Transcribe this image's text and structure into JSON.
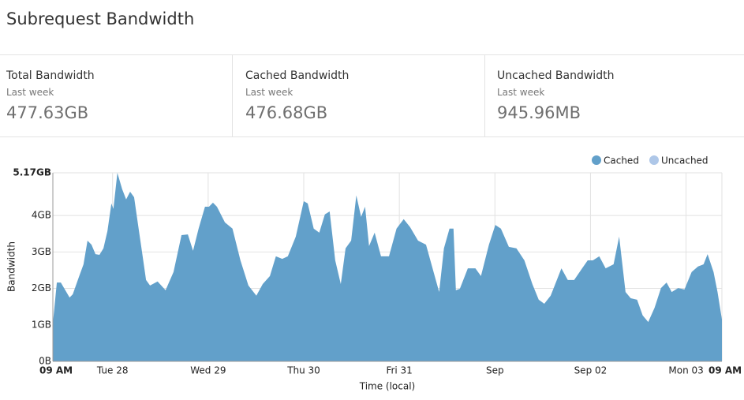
{
  "header": {
    "title": "Subrequest Bandwidth"
  },
  "stats": [
    {
      "title": "Total Bandwidth",
      "subtitle": "Last week",
      "value": "477.63GB"
    },
    {
      "title": "Cached Bandwidth",
      "subtitle": "Last week",
      "value": "476.68GB"
    },
    {
      "title": "Uncached Bandwidth",
      "subtitle": "Last week",
      "value": "945.96MB"
    }
  ],
  "chart_data": {
    "type": "area",
    "x_label": "Time (local)",
    "y_label": "Bandwidth",
    "grid": true,
    "legend": "top-right",
    "xlim": [
      0,
      168
    ],
    "xticks": [
      {
        "value": 0,
        "label": "09 AM"
      },
      {
        "value": 15,
        "label": "Tue 28"
      },
      {
        "value": 39,
        "label": "Wed 29"
      },
      {
        "value": 63,
        "label": "Thu 30"
      },
      {
        "value": 87,
        "label": "Fri 31"
      },
      {
        "value": 111,
        "label": "Sep"
      },
      {
        "value": 135,
        "label": "Sep 02"
      },
      {
        "value": 159,
        "label": "Mon 03"
      },
      {
        "value": 168,
        "label": "09 AM"
      }
    ],
    "ylim": [
      0,
      5.17
    ],
    "yticks": [
      {
        "value": 0,
        "label": "0B"
      },
      {
        "value": 1,
        "label": "1GB"
      },
      {
        "value": 2,
        "label": "2GB"
      },
      {
        "value": 3,
        "label": "3GB"
      },
      {
        "value": 4,
        "label": "4GB"
      },
      {
        "value": 5.17,
        "label": "5.17GB"
      }
    ],
    "series": [
      {
        "name": "Cached",
        "color": "#62a0ca",
        "x": [
          0,
          1,
          2,
          4.2,
          5,
          6.5,
          7.7,
          8.7,
          9.7,
          10.7,
          11.7,
          12.7,
          13.7,
          14.7,
          15.2,
          16.2,
          17.4,
          18.4,
          19.4,
          20.4,
          21.4,
          22.4,
          23.4,
          24.4,
          26.3,
          28.3,
          30.3,
          32.3,
          33.9,
          35.2,
          36.6,
          38.2,
          39.2,
          40.2,
          41.2,
          43.2,
          45.1,
          47.1,
          49.1,
          51.1,
          52.7,
          54.5,
          56,
          57.6,
          59,
          61,
          63,
          64,
          65.5,
          66.9,
          68.3,
          69.5,
          70.9,
          72.3,
          73.5,
          74.9,
          76.2,
          77.4,
          78.4,
          79.4,
          80.8,
          82.4,
          84.4,
          86.3,
          88.1,
          89.7,
          91.7,
          93.7,
          95.6,
          97,
          98.2,
          99.6,
          100.6,
          101.2,
          102.2,
          104.2,
          106.1,
          107.5,
          109.5,
          111.1,
          112.5,
          114.5,
          116.4,
          118.4,
          120.4,
          122,
          123.4,
          125,
          126.3,
          127.7,
          129.3,
          130.9,
          132.9,
          134.3,
          135.6,
          137.2,
          138.8,
          140.8,
          142.2,
          143.8,
          145.1,
          146.7,
          148.1,
          149.5,
          151.1,
          152.7,
          154.1,
          155.4,
          157,
          158.6,
          160.4,
          162,
          163.4,
          164.4,
          165.9,
          166.9,
          168
        ],
        "values": [
          1.04,
          2.16,
          2.16,
          1.75,
          1.84,
          2.3,
          2.66,
          3.31,
          3.2,
          2.94,
          2.92,
          3.1,
          3.57,
          4.33,
          4.18,
          5.17,
          4.72,
          4.44,
          4.65,
          4.5,
          3.74,
          2.99,
          2.23,
          2.08,
          2.19,
          1.95,
          2.45,
          3.46,
          3.48,
          3.03,
          3.64,
          4.24,
          4.24,
          4.35,
          4.24,
          3.81,
          3.64,
          2.77,
          2.08,
          1.8,
          2.12,
          2.34,
          2.88,
          2.81,
          2.88,
          3.42,
          4.39,
          4.33,
          3.64,
          3.53,
          4.03,
          4.11,
          2.77,
          2.12,
          3.1,
          3.31,
          4.55,
          3.96,
          4.24,
          3.16,
          3.53,
          2.88,
          2.88,
          3.64,
          3.9,
          3.68,
          3.31,
          3.2,
          2.45,
          1.9,
          3.1,
          3.64,
          3.64,
          1.95,
          1.99,
          2.55,
          2.55,
          2.34,
          3.2,
          3.74,
          3.64,
          3.14,
          3.1,
          2.77,
          2.12,
          1.69,
          1.58,
          1.8,
          2.16,
          2.55,
          2.23,
          2.23,
          2.55,
          2.77,
          2.77,
          2.88,
          2.55,
          2.66,
          3.42,
          1.9,
          1.73,
          1.69,
          1.26,
          1.08,
          1.47,
          2.01,
          2.16,
          1.9,
          2.01,
          1.97,
          2.45,
          2.6,
          2.66,
          2.94,
          2.45,
          1.9,
          1.15
        ]
      },
      {
        "name": "Uncached",
        "color": "#aec7e8",
        "x": [
          0,
          168
        ],
        "values": [
          0.01,
          0.01
        ]
      }
    ]
  }
}
